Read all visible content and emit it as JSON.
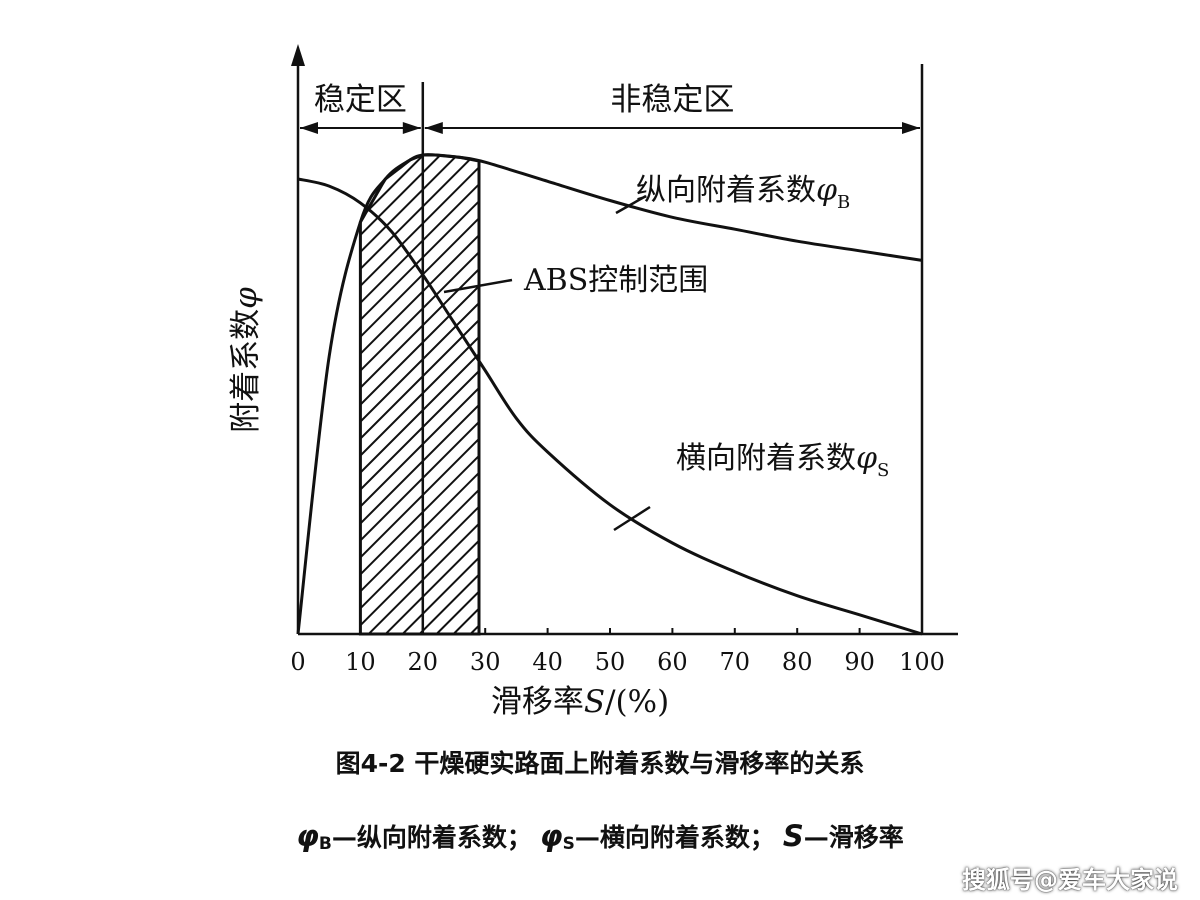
{
  "chart_data": {
    "type": "line",
    "xlabel": "滑移率S/(%)",
    "xlabel_parts": {
      "prefix": "滑移率",
      "symbol": "S",
      "suffix": "/(%)"
    },
    "ylabel": "附着系数φ",
    "ylabel_parts": {
      "text": "附着系数",
      "symbol": "φ"
    },
    "xlim": [
      0,
      100
    ],
    "ylim": [
      0,
      1.05
    ],
    "x_ticks": [
      "0",
      "10",
      "20",
      "30",
      "40",
      "50",
      "60",
      "70",
      "80",
      "90",
      "100"
    ],
    "grid": false,
    "series": [
      {
        "name": "纵向附着系数φB",
        "label_prefix": "纵向附着系数",
        "symbol": "φ",
        "subscript": "B",
        "x": [
          0,
          5,
          10,
          14,
          18,
          20,
          22,
          26,
          30,
          40,
          50,
          60,
          70,
          80,
          90,
          100
        ],
        "y": [
          0,
          0.58,
          0.86,
          0.95,
          0.99,
          1.0,
          1.0,
          0.995,
          0.985,
          0.945,
          0.905,
          0.87,
          0.845,
          0.82,
          0.8,
          0.78
        ],
        "color": "#111111"
      },
      {
        "name": "横向附着系数φS",
        "label_prefix": "横向附着系数",
        "symbol": "φ",
        "subscript": "S",
        "x": [
          0,
          5,
          10,
          15,
          20,
          25,
          30,
          35,
          40,
          50,
          60,
          70,
          80,
          90,
          100
        ],
        "y": [
          0.95,
          0.935,
          0.9,
          0.84,
          0.75,
          0.65,
          0.55,
          0.45,
          0.38,
          0.27,
          0.19,
          0.13,
          0.08,
          0.04,
          0.0
        ],
        "color": "#111111"
      }
    ],
    "zones": [
      {
        "label": "稳定区",
        "x_range": [
          0,
          20
        ]
      },
      {
        "label": "非稳定区",
        "x_range": [
          20,
          100
        ]
      }
    ],
    "abs_region": {
      "label": "ABS控制范围",
      "x_range": [
        10,
        29
      ]
    },
    "annotations": [
      "稳定区",
      "非稳定区",
      "ABS控制范围"
    ]
  },
  "caption": {
    "title": "图4-2  干燥硬实路面上附着系数与滑移率的关系",
    "legend_parts": [
      {
        "sym": "φ",
        "sub": "B",
        "text": "—纵向附着系数；"
      },
      {
        "sym": "φ",
        "sub": "S",
        "text": "—横向附着系数；"
      },
      {
        "sym": "S",
        "sub": "",
        "text": "—滑移率"
      }
    ]
  },
  "watermark": "搜狐号@爱车大家说"
}
